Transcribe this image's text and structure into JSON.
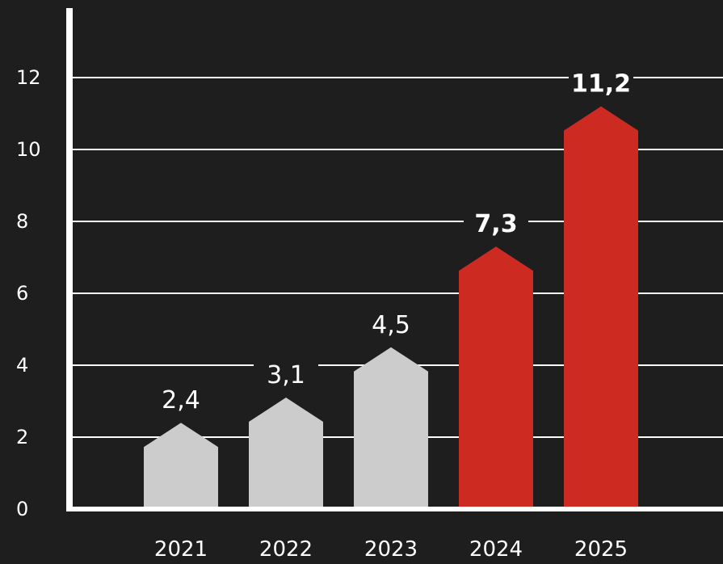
{
  "chart_data": {
    "type": "bar",
    "categories": [
      "2021",
      "2022",
      "2023",
      "2024",
      "2025"
    ],
    "values": [
      2.4,
      3.1,
      4.5,
      7.3,
      11.2
    ],
    "value_labels": [
      "2,4",
      "3,1",
      "4,5",
      "7,3",
      "11,2"
    ],
    "highlighted": [
      false,
      false,
      false,
      true,
      true
    ],
    "y_ticks": [
      "0",
      "2",
      "4",
      "6",
      "8",
      "10",
      "12"
    ],
    "ylim": [
      0,
      13.5
    ],
    "grid": true,
    "legend": "none",
    "title": "",
    "xlabel": "",
    "ylabel": ""
  },
  "colors": {
    "background": "#1f1e1e",
    "bar_default": "#cccccc",
    "bar_highlight": "#cd2b22",
    "axis": "#ffffff",
    "grid": "#ffffff",
    "text": "#ffffff"
  }
}
